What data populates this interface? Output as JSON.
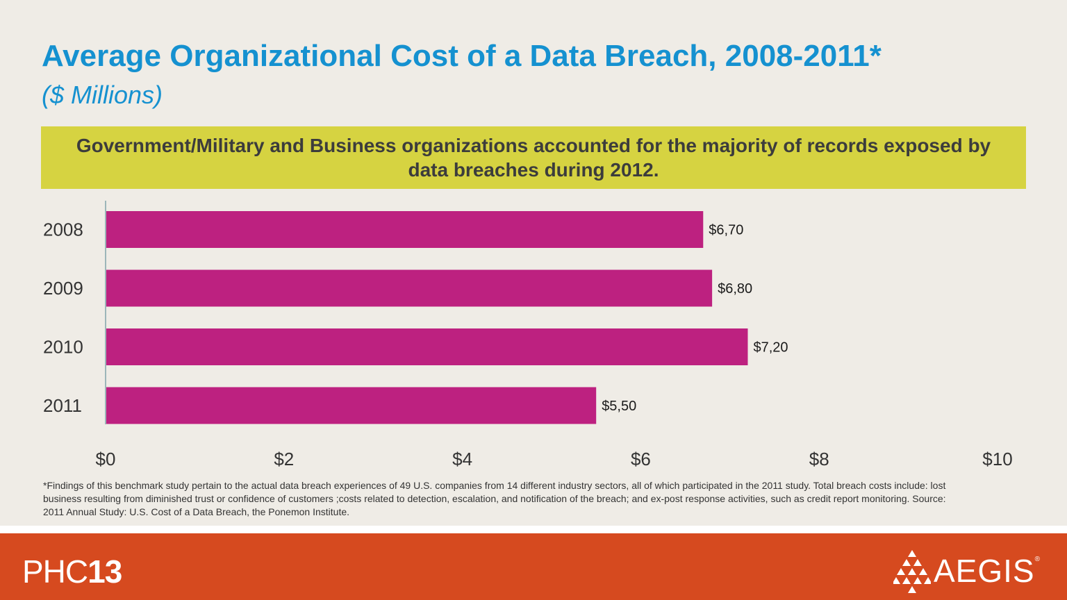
{
  "header": {
    "title": "Average Organizational Cost of a Data Breach, 2008-2011*",
    "subtitle": "($ Millions)"
  },
  "banner": {
    "text": "Government/Military and Business organizations accounted for the majority of records exposed by data breaches during 2012."
  },
  "chart_data": {
    "type": "bar",
    "orientation": "horizontal",
    "categories": [
      "2008",
      "2009",
      "2010",
      "2011"
    ],
    "values": [
      6.7,
      6.8,
      7.2,
      5.5
    ],
    "data_labels": [
      "$6,70",
      "$6,80",
      "$7,20",
      "$5,50"
    ],
    "xlim": [
      0,
      10
    ],
    "x_ticks": [
      0,
      2,
      4,
      6,
      8,
      10
    ],
    "x_tick_labels": [
      "$0",
      "$2",
      "$4",
      "$6",
      "$8",
      "$10"
    ],
    "bar_color": "#bd2180",
    "grid": false,
    "legend": "none"
  },
  "footnote": {
    "text": "*Findings of this benchmark study pertain to the actual data breach experiences of 49 U.S. companies from 14 different industry sectors, all of which participated in the 2011 study. Total breach costs include: lost business resulting from diminished trust or confidence of customers ;costs related to detection, escalation, and notification of the breach;  and ex-post response activities, such as credit report monitoring. Source: 2011 Annual Study: U.S. Cost of a Data Breach, the Ponemon Institute."
  },
  "footer": {
    "phc_prefix": "PHC",
    "phc_number": "13",
    "aegis_name": "AEGIS",
    "aegis_reg": "®"
  },
  "colors": {
    "title": "#1591d0",
    "banner": "#d6d341",
    "bar": "#bd2180",
    "footer": "#d64a1f",
    "background": "#efece6"
  }
}
